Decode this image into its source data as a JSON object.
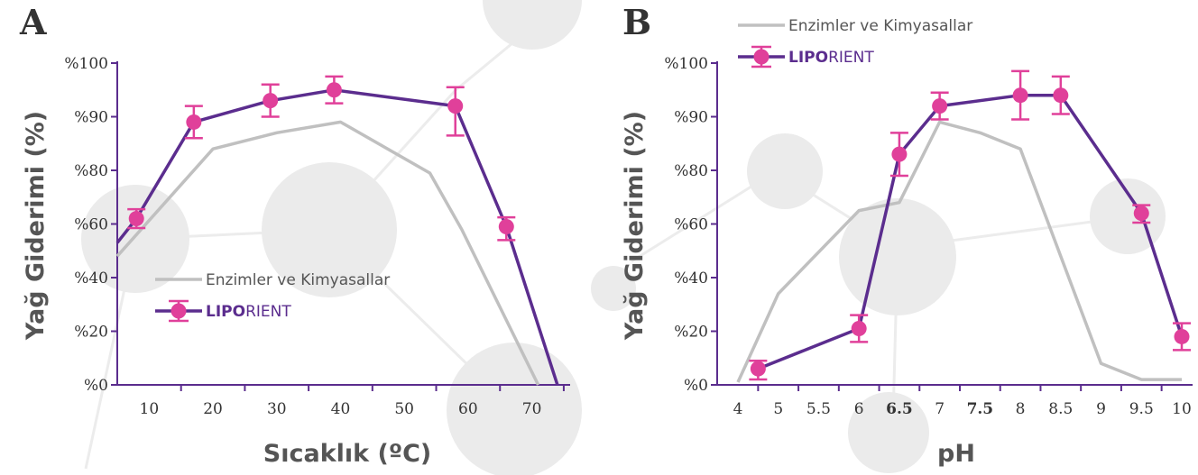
{
  "colors": {
    "enzyme": "#c0c0c0",
    "liporient": "#5b2d8e",
    "marker": "#e0409a",
    "axis": "#5b2d8e",
    "text": "#333333",
    "title": "#555555",
    "bg_circles": "#e6e6e6"
  },
  "chart_data": [
    {
      "type": "line",
      "panel_label": "A",
      "xlabel": "Sıcaklık (ºC)",
      "ylabel": "Yağ Giderimi (%)",
      "x_ticks": [
        "10",
        "20",
        "30",
        "40",
        "50",
        "60",
        "70"
      ],
      "x_tick_values": [
        10,
        20,
        30,
        40,
        50,
        60,
        70
      ],
      "xlim": [
        5,
        76
      ],
      "y_ticks": [
        "%0",
        "%20",
        "%40",
        "%60",
        "%80",
        "%90",
        "%100"
      ],
      "y_tick_values": [
        0,
        20,
        40,
        60,
        80,
        90,
        100
      ],
      "legend_position": "center",
      "series": [
        {
          "name": "Enzimler ve Kimyasallar",
          "x": [
            5,
            20,
            30,
            40,
            54,
            59,
            71
          ],
          "y": [
            48,
            84,
            87,
            89,
            79,
            58,
            0
          ]
        },
        {
          "name_parts": [
            "LIPO",
            "RIENT"
          ],
          "x": [
            5,
            8,
            17,
            29,
            39,
            58,
            66,
            74
          ],
          "y": [
            53,
            62,
            89,
            93,
            95,
            92,
            59,
            0
          ],
          "marker_x": [
            8,
            17,
            29,
            39,
            58,
            66
          ],
          "marker_y": [
            62,
            89,
            93,
            95,
            92,
            59
          ],
          "err_high": [
            3.5,
            3,
            3,
            2.5,
            3.5,
            3.5
          ],
          "err_low": [
            3.5,
            3,
            3,
            2.5,
            5.5,
            5
          ]
        }
      ]
    },
    {
      "type": "line",
      "panel_label": "B",
      "xlabel": "pH",
      "ylabel": "Yağ Giderimi (%)",
      "x_ticks": [
        "4",
        "5",
        "5.5",
        "6",
        "6.5",
        "7",
        "7.5",
        "8",
        "8.5",
        "9",
        "9.5",
        "10"
      ],
      "x_tick_values": [
        4,
        5,
        5.5,
        6,
        6.5,
        7,
        7.5,
        8,
        8.5,
        9,
        9.5,
        10
      ],
      "bold_x_ticks": [
        "6.5",
        "7.5"
      ],
      "y_ticks": [
        "%0",
        "%20",
        "%40",
        "%60",
        "%80",
        "%90",
        "%100"
      ],
      "y_tick_values": [
        0,
        20,
        40,
        60,
        80,
        90,
        100
      ],
      "legend_position": "top-left",
      "series": [
        {
          "name": "Enzimler ve Kimyasallar",
          "x": [
            4,
            5,
            6,
            6.5,
            7,
            7.5,
            8,
            9,
            9.5,
            10
          ],
          "y": [
            1,
            34,
            65,
            68,
            89,
            87,
            84,
            8,
            2,
            2
          ]
        },
        {
          "name_parts": [
            "LIPO",
            "RIENT"
          ],
          "x": [
            4.5,
            6,
            6.5,
            7,
            8,
            8.5,
            9.5,
            10
          ],
          "y": [
            6,
            21,
            83,
            92,
            94,
            94,
            64,
            18
          ],
          "marker_x": [
            4.5,
            6,
            6.5,
            7,
            8,
            8.5,
            9.5,
            10
          ],
          "marker_y": [
            6,
            21,
            83,
            92,
            94,
            94,
            64,
            18
          ],
          "err_high": [
            3,
            5,
            4,
            2.5,
            4.5,
            3.5,
            3,
            5
          ],
          "err_low": [
            4,
            5,
            5,
            2.5,
            4.5,
            3.5,
            3.5,
            5
          ]
        }
      ]
    }
  ]
}
